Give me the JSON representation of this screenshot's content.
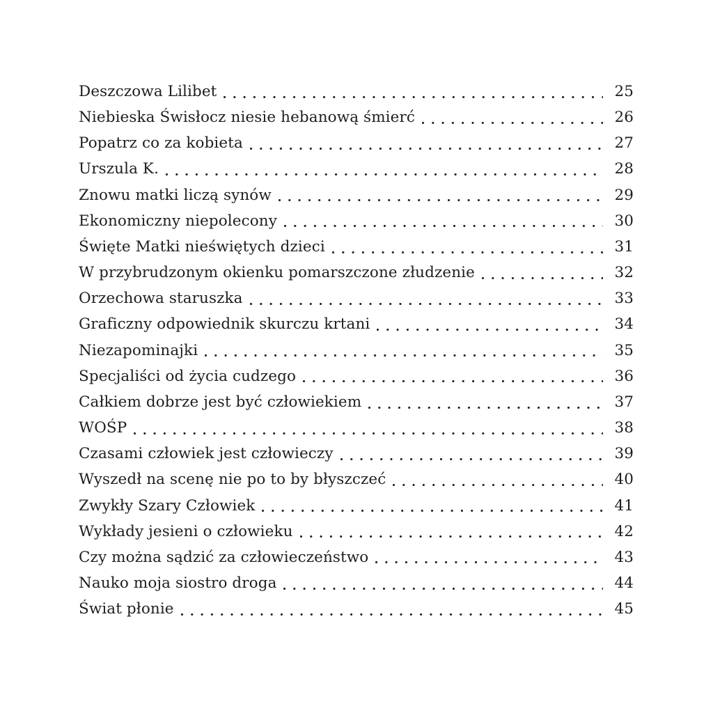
{
  "page": {
    "background_color": "#ffffff",
    "text_color": "#1e1e1e",
    "kind": "table-of-contents"
  },
  "toc": {
    "entries": [
      {
        "title": "Deszczowa Lilibet",
        "page": "25"
      },
      {
        "title": "Niebieska Świsłocz niesie hebanową śmierć",
        "page": "26"
      },
      {
        "title": "Popatrz co za kobieta",
        "page": "27"
      },
      {
        "title": "Urszula K.",
        "page": "28"
      },
      {
        "title": "Znowu matki liczą synów",
        "page": "29"
      },
      {
        "title": "Ekonomiczny niepolecony",
        "page": "30"
      },
      {
        "title": "Święte Matki nieświętych dzieci",
        "page": "31"
      },
      {
        "title": "W przybrudzonym okienku pomarszczone złudzenie",
        "page": "32"
      },
      {
        "title": "Orzechowa staruszka",
        "page": "33"
      },
      {
        "title": "Graficzny odpowiednik skurczu krtani",
        "page": "34"
      },
      {
        "title": "Niezapominajki",
        "page": "35"
      },
      {
        "title": "Specjaliści od życia cudzego",
        "page": "36"
      },
      {
        "title": "Całkiem dobrze jest być człowiekiem",
        "page": "37"
      },
      {
        "title": "WOŚP",
        "page": "38"
      },
      {
        "title": "Czasami człowiek jest człowieczy",
        "page": "39"
      },
      {
        "title": "Wyszedł na scenę nie po to by błyszczeć",
        "page": "40"
      },
      {
        "title": "Zwykły Szary Człowiek",
        "page": "41"
      },
      {
        "title": "Wykłady jesieni o człowieku",
        "page": "42"
      },
      {
        "title": "Czy można sądzić za człowieczeństwo",
        "page": "43"
      },
      {
        "title": "Nauko moja siostro droga",
        "page": "44"
      },
      {
        "title": "Świat płonie",
        "page": "45"
      }
    ]
  }
}
